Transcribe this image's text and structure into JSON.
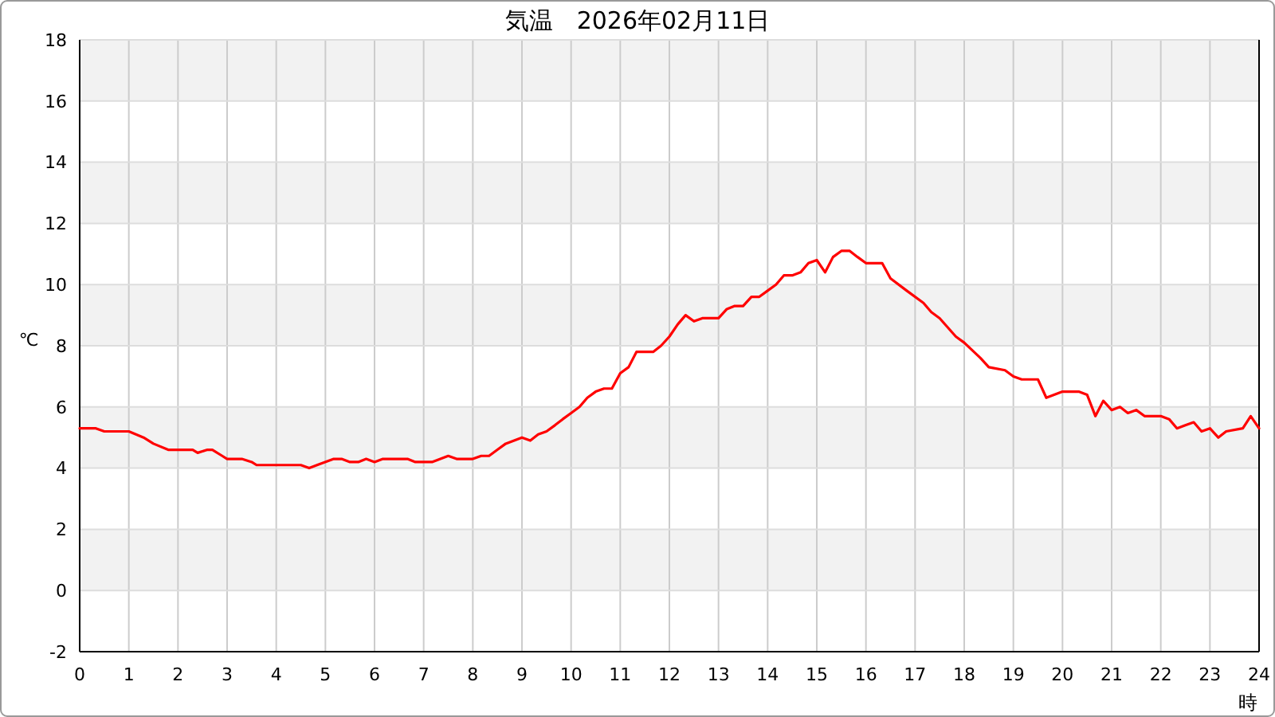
{
  "chart_data": {
    "type": "line",
    "title": "気温　2026年02月11日",
    "xlabel": "時",
    "ylabel": "℃",
    "x": [
      0,
      0.33,
      0.5,
      1,
      1.3,
      1.5,
      1.8,
      2.3,
      2.4,
      2.6,
      2.7,
      2.9,
      3,
      3.3,
      3.5,
      3.6,
      4.5,
      4.67,
      4.83,
      5.17,
      5.33,
      5.5,
      5.67,
      5.83,
      6,
      6.17,
      6.67,
      6.83,
      7.17,
      7.5,
      7.67,
      8,
      8.17,
      8.33,
      8.5,
      8.67,
      9,
      9.17,
      9.33,
      9.5,
      9.67,
      9.83,
      10,
      10.17,
      10.33,
      10.5,
      10.67,
      10.83,
      11,
      11.17,
      11.33,
      11.67,
      11.83,
      12,
      12.17,
      12.33,
      12.5,
      12.67,
      13,
      13.17,
      13.33,
      13.5,
      13.67,
      13.83,
      14,
      14.17,
      14.33,
      14.5,
      14.67,
      14.83,
      15,
      15.17,
      15.33,
      15.5,
      15.67,
      15.83,
      16,
      16.33,
      16.5,
      16.83,
      17.17,
      17.33,
      17.5,
      17.83,
      18,
      18.33,
      18.5,
      18.83,
      19,
      19.17,
      19.5,
      19.67,
      20,
      20.33,
      20.5,
      20.67,
      20.83,
      21,
      21.17,
      21.33,
      21.5,
      21.67,
      22,
      22.17,
      22.33,
      22.5,
      22.67,
      22.83,
      23,
      23.17,
      23.33,
      23.67,
      23.83,
      24
    ],
    "series": [
      {
        "color": "#ff0000",
        "values": [
          5.3,
          5.3,
          5.2,
          5.2,
          5.0,
          4.8,
          4.6,
          4.6,
          4.5,
          4.6,
          4.6,
          4.4,
          4.3,
          4.3,
          4.2,
          4.1,
          4.1,
          4.0,
          4.1,
          4.3,
          4.3,
          4.2,
          4.2,
          4.3,
          4.2,
          4.3,
          4.3,
          4.2,
          4.2,
          4.4,
          4.3,
          4.3,
          4.4,
          4.4,
          4.6,
          4.8,
          5.0,
          4.9,
          5.1,
          5.2,
          5.4,
          5.6,
          5.8,
          6.0,
          6.3,
          6.5,
          6.6,
          6.6,
          7.1,
          7.3,
          7.8,
          7.8,
          8.0,
          8.3,
          8.7,
          9.0,
          8.8,
          8.9,
          8.9,
          9.2,
          9.3,
          9.3,
          9.6,
          9.6,
          9.8,
          10.0,
          10.3,
          10.3,
          10.4,
          10.7,
          10.8,
          10.4,
          10.9,
          11.1,
          11.1,
          10.9,
          10.7,
          10.7,
          10.2,
          9.8,
          9.4,
          9.1,
          8.9,
          8.3,
          8.1,
          7.6,
          7.3,
          7.2,
          7.0,
          6.9,
          6.9,
          6.3,
          6.5,
          6.5,
          6.4,
          5.7,
          6.2,
          5.9,
          6.0,
          5.8,
          5.9,
          5.7,
          5.7,
          5.6,
          5.3,
          5.4,
          5.5,
          5.2,
          5.3,
          5.0,
          5.2,
          5.3,
          5.7,
          5.3
        ]
      }
    ],
    "xlim": [
      0,
      24
    ],
    "xticks": [
      0,
      1,
      2,
      3,
      4,
      5,
      6,
      7,
      8,
      9,
      10,
      11,
      12,
      13,
      14,
      15,
      16,
      17,
      18,
      19,
      20,
      21,
      22,
      23,
      24
    ],
    "ylim": [
      -2,
      18
    ],
    "yticks": [
      -2,
      0,
      2,
      4,
      6,
      8,
      10,
      12,
      14,
      16,
      18
    ],
    "grid": true,
    "marker": "none",
    "line_style": "solid"
  }
}
